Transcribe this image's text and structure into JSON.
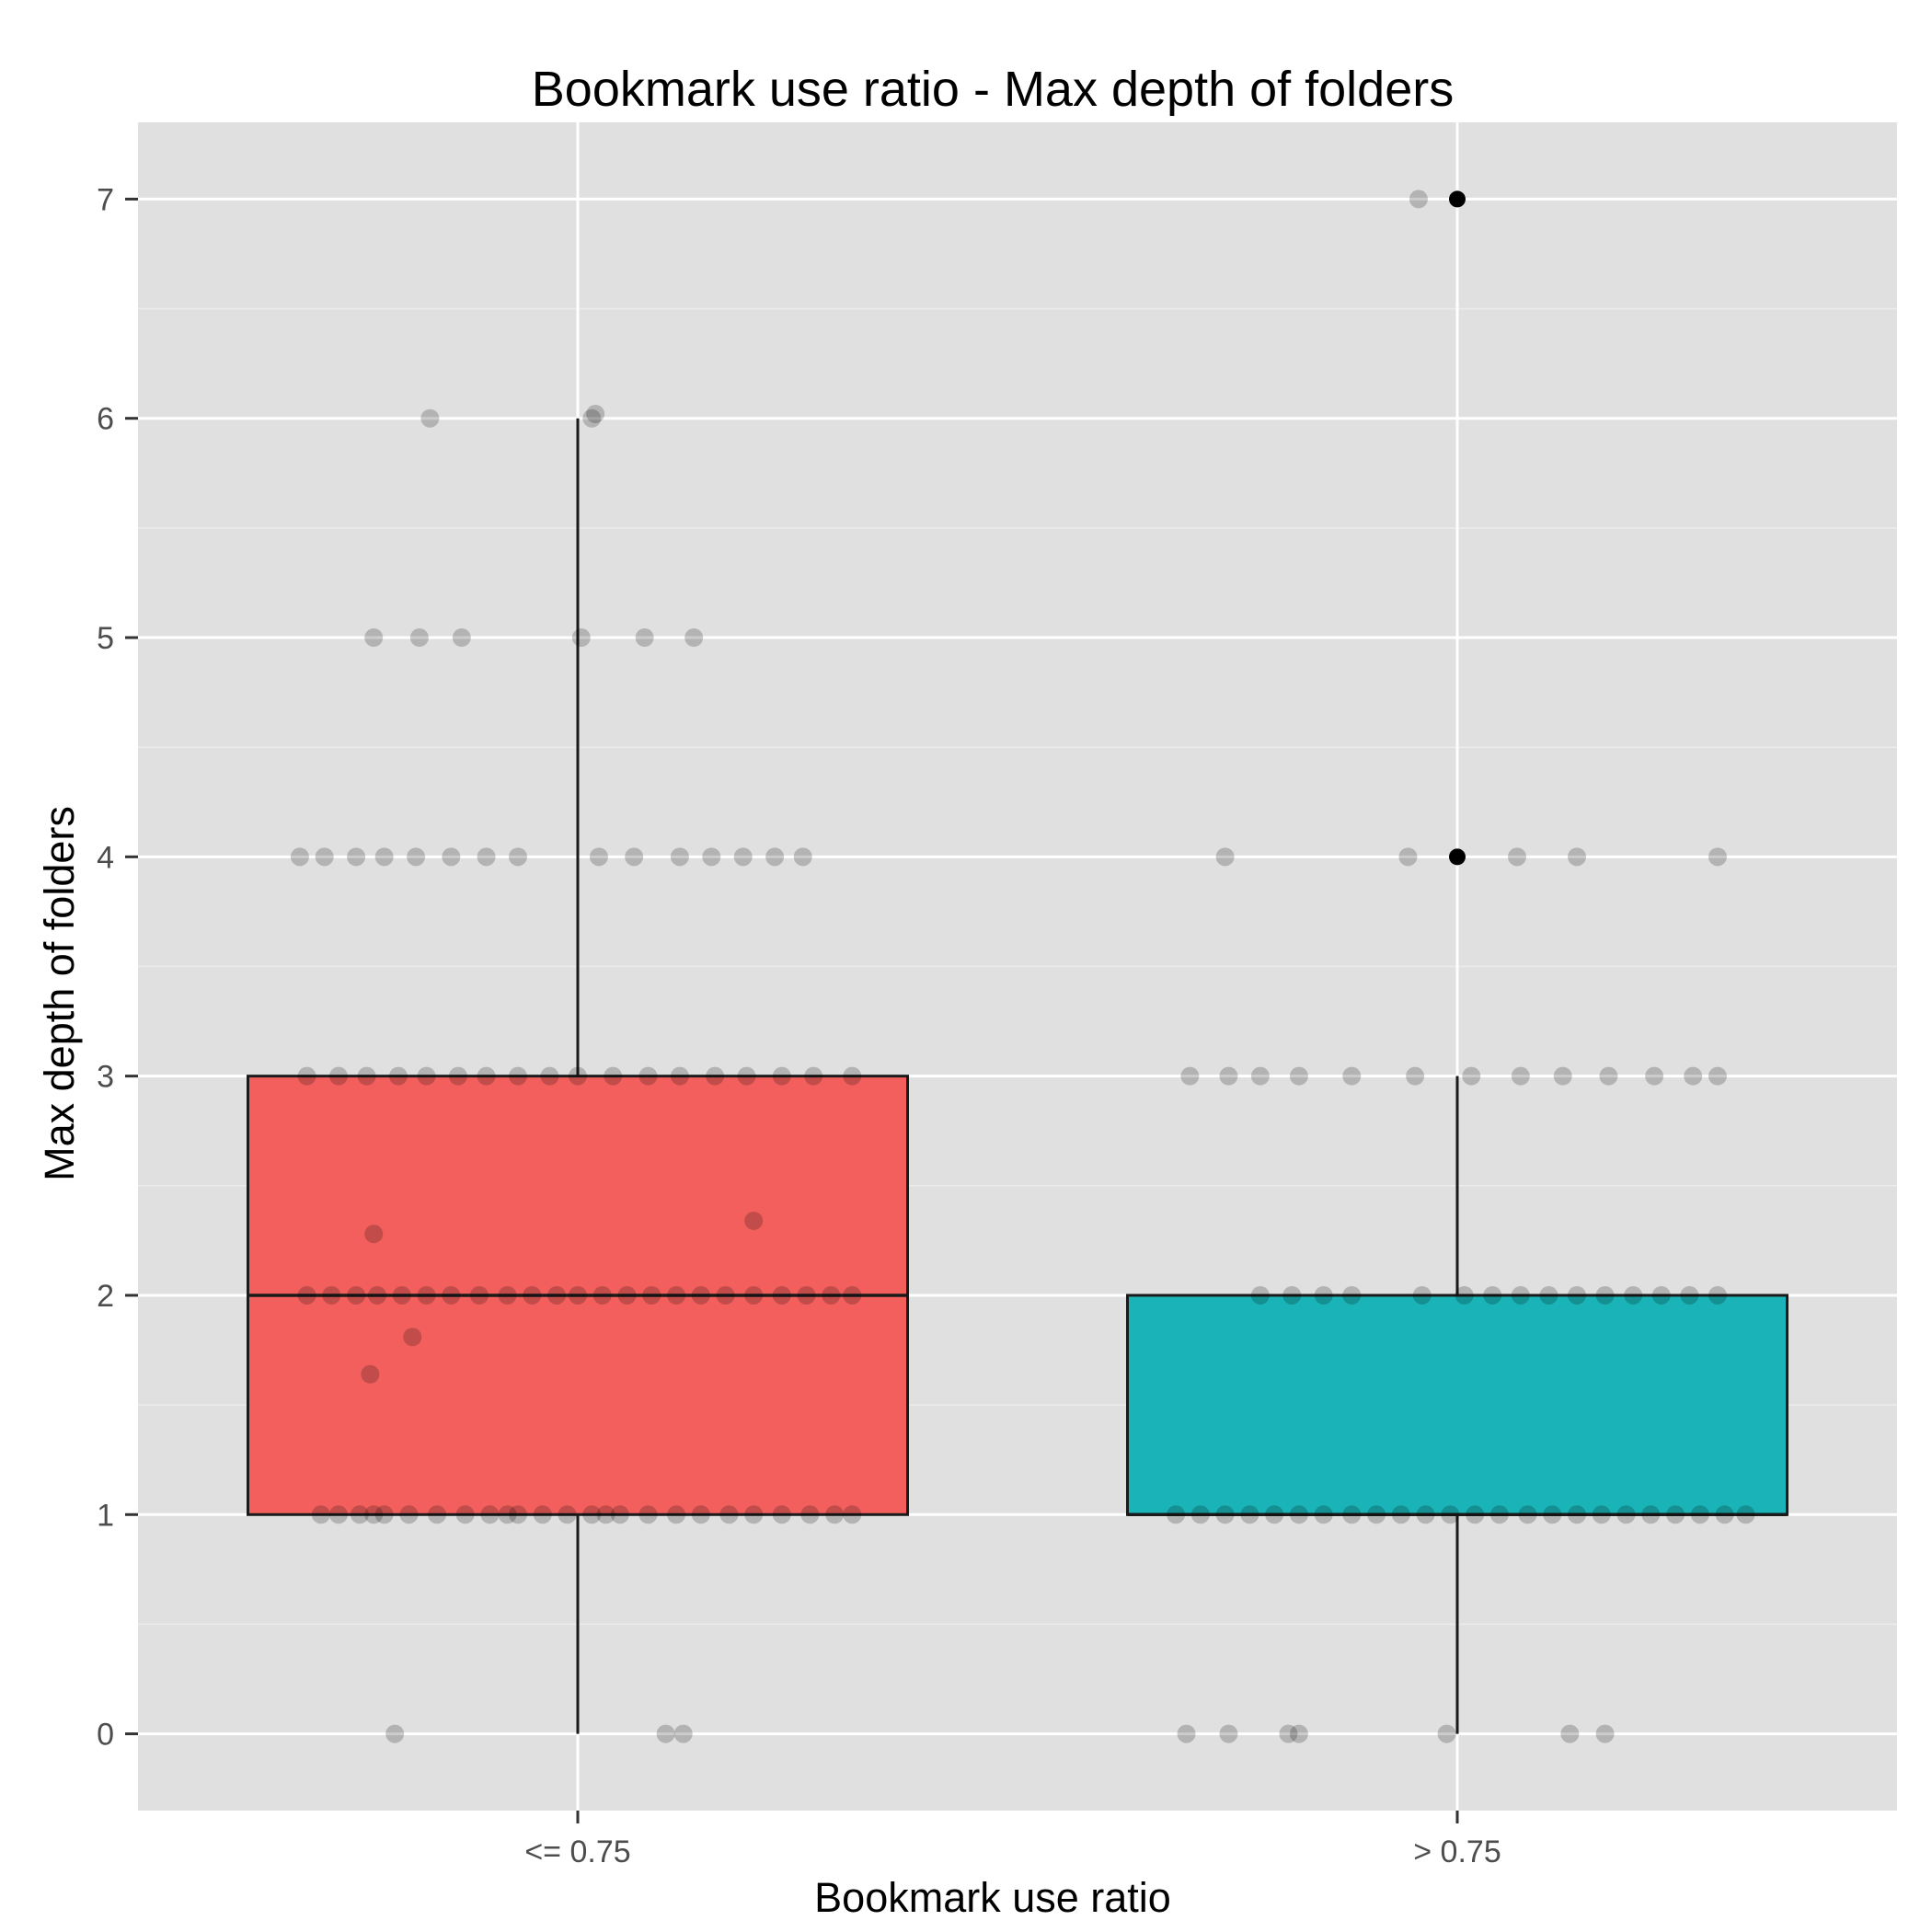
{
  "colors": {
    "panel": "#e0e0e0",
    "grid_major": "#ffffff",
    "grid_minor": "#ececec",
    "box_low": "#f25f5c",
    "box_high": "#1ab4b8",
    "outline": "#1a1a1a",
    "point": "#000000",
    "tick_text": "#4d4d4d"
  },
  "chart_data": {
    "type": "box",
    "title": "Bookmark use ratio - Max depth of folders",
    "xlabel": "Bookmark use ratio",
    "ylabel": "Max depth of folders",
    "categories": [
      "<= 0.75",
      "> 0.75"
    ],
    "ylim": [
      -0.35,
      7.35
    ],
    "yticks": [
      0,
      1,
      2,
      3,
      4,
      5,
      6,
      7
    ],
    "grid": true,
    "legend": "none",
    "boxes": [
      {
        "category": "<= 0.75",
        "whisker_low": 0,
        "q1": 1,
        "median": 2,
        "q3": 3,
        "whisker_high": 6,
        "outliers": [],
        "jitter_points": [
          {
            "x": -0.52,
            "y": 0
          },
          {
            "x": 0.25,
            "y": 0
          },
          {
            "x": 0.3,
            "y": 0
          },
          {
            "x": -0.73,
            "y": 1
          },
          {
            "x": -0.68,
            "y": 1
          },
          {
            "x": -0.62,
            "y": 1
          },
          {
            "x": -0.55,
            "y": 1
          },
          {
            "x": -0.48,
            "y": 1
          },
          {
            "x": -0.4,
            "y": 1
          },
          {
            "x": -0.32,
            "y": 1
          },
          {
            "x": -0.25,
            "y": 1
          },
          {
            "x": -0.17,
            "y": 1
          },
          {
            "x": -0.1,
            "y": 1
          },
          {
            "x": -0.03,
            "y": 1
          },
          {
            "x": 0.04,
            "y": 1
          },
          {
            "x": 0.12,
            "y": 1
          },
          {
            "x": 0.2,
            "y": 1
          },
          {
            "x": 0.28,
            "y": 1
          },
          {
            "x": 0.35,
            "y": 1
          },
          {
            "x": 0.43,
            "y": 1
          },
          {
            "x": 0.5,
            "y": 1
          },
          {
            "x": 0.58,
            "y": 1
          },
          {
            "x": 0.66,
            "y": 1
          },
          {
            "x": 0.73,
            "y": 1
          },
          {
            "x": 0.78,
            "y": 1
          },
          {
            "x": -0.58,
            "y": 1
          },
          {
            "x": -0.2,
            "y": 1
          },
          {
            "x": 0.08,
            "y": 1
          },
          {
            "x": -0.77,
            "y": 2
          },
          {
            "x": -0.7,
            "y": 2
          },
          {
            "x": -0.63,
            "y": 2
          },
          {
            "x": -0.57,
            "y": 2
          },
          {
            "x": -0.5,
            "y": 2
          },
          {
            "x": -0.43,
            "y": 2
          },
          {
            "x": -0.36,
            "y": 2
          },
          {
            "x": -0.28,
            "y": 2
          },
          {
            "x": -0.2,
            "y": 2
          },
          {
            "x": -0.13,
            "y": 2
          },
          {
            "x": -0.06,
            "y": 2
          },
          {
            "x": 0.0,
            "y": 2
          },
          {
            "x": 0.07,
            "y": 2
          },
          {
            "x": 0.14,
            "y": 2
          },
          {
            "x": 0.21,
            "y": 2
          },
          {
            "x": 0.28,
            "y": 2
          },
          {
            "x": 0.35,
            "y": 2
          },
          {
            "x": 0.42,
            "y": 2
          },
          {
            "x": 0.5,
            "y": 2
          },
          {
            "x": 0.58,
            "y": 2
          },
          {
            "x": 0.65,
            "y": 2
          },
          {
            "x": 0.72,
            "y": 2
          },
          {
            "x": 0.78,
            "y": 2
          },
          {
            "x": -0.58,
            "y": 2.28
          },
          {
            "x": 0.5,
            "y": 2.34
          },
          {
            "x": -0.47,
            "y": 1.81
          },
          {
            "x": -0.59,
            "y": 1.64
          },
          {
            "x": -0.77,
            "y": 3
          },
          {
            "x": -0.68,
            "y": 3
          },
          {
            "x": -0.6,
            "y": 3
          },
          {
            "x": -0.51,
            "y": 3
          },
          {
            "x": -0.43,
            "y": 3
          },
          {
            "x": -0.34,
            "y": 3
          },
          {
            "x": -0.26,
            "y": 3
          },
          {
            "x": -0.17,
            "y": 3
          },
          {
            "x": -0.08,
            "y": 3
          },
          {
            "x": 0.0,
            "y": 3
          },
          {
            "x": 0.1,
            "y": 3
          },
          {
            "x": 0.2,
            "y": 3
          },
          {
            "x": 0.29,
            "y": 3
          },
          {
            "x": 0.39,
            "y": 3
          },
          {
            "x": 0.48,
            "y": 3
          },
          {
            "x": 0.58,
            "y": 3
          },
          {
            "x": 0.67,
            "y": 3
          },
          {
            "x": 0.78,
            "y": 3
          },
          {
            "x": -0.79,
            "y": 4
          },
          {
            "x": -0.72,
            "y": 4
          },
          {
            "x": -0.63,
            "y": 4
          },
          {
            "x": -0.55,
            "y": 4
          },
          {
            "x": -0.46,
            "y": 4
          },
          {
            "x": -0.36,
            "y": 4
          },
          {
            "x": -0.26,
            "y": 4
          },
          {
            "x": -0.17,
            "y": 4
          },
          {
            "x": 0.06,
            "y": 4
          },
          {
            "x": 0.16,
            "y": 4
          },
          {
            "x": 0.29,
            "y": 4
          },
          {
            "x": 0.38,
            "y": 4
          },
          {
            "x": 0.47,
            "y": 4
          },
          {
            "x": 0.56,
            "y": 4
          },
          {
            "x": 0.64,
            "y": 4
          },
          {
            "x": -0.58,
            "y": 5
          },
          {
            "x": -0.45,
            "y": 5
          },
          {
            "x": -0.33,
            "y": 5
          },
          {
            "x": 0.01,
            "y": 5
          },
          {
            "x": 0.19,
            "y": 5
          },
          {
            "x": 0.33,
            "y": 5
          },
          {
            "x": -0.42,
            "y": 6
          },
          {
            "x": 0.04,
            "y": 6
          },
          {
            "x": 0.05,
            "y": 6.02
          }
        ]
      },
      {
        "category": "> 0.75",
        "whisker_low": 0,
        "q1": 1,
        "median": 1,
        "q3": 2,
        "whisker_high": 3,
        "outliers": [
          4,
          7
        ],
        "jitter_points": [
          {
            "x": -0.77,
            "y": 0
          },
          {
            "x": -0.65,
            "y": 0
          },
          {
            "x": -0.48,
            "y": 0
          },
          {
            "x": -0.45,
            "y": 0
          },
          {
            "x": -0.03,
            "y": 0
          },
          {
            "x": 0.32,
            "y": 0
          },
          {
            "x": 0.42,
            "y": 0
          },
          {
            "x": -0.8,
            "y": 1
          },
          {
            "x": -0.73,
            "y": 1
          },
          {
            "x": -0.66,
            "y": 1
          },
          {
            "x": -0.59,
            "y": 1
          },
          {
            "x": -0.52,
            "y": 1
          },
          {
            "x": -0.45,
            "y": 1
          },
          {
            "x": -0.38,
            "y": 1
          },
          {
            "x": -0.3,
            "y": 1
          },
          {
            "x": -0.23,
            "y": 1
          },
          {
            "x": -0.16,
            "y": 1
          },
          {
            "x": -0.09,
            "y": 1
          },
          {
            "x": -0.02,
            "y": 1
          },
          {
            "x": 0.05,
            "y": 1
          },
          {
            "x": 0.12,
            "y": 1
          },
          {
            "x": 0.2,
            "y": 1
          },
          {
            "x": 0.27,
            "y": 1
          },
          {
            "x": 0.34,
            "y": 1
          },
          {
            "x": 0.41,
            "y": 1
          },
          {
            "x": 0.48,
            "y": 1
          },
          {
            "x": 0.55,
            "y": 1
          },
          {
            "x": 0.62,
            "y": 1
          },
          {
            "x": 0.69,
            "y": 1
          },
          {
            "x": 0.76,
            "y": 1
          },
          {
            "x": 0.82,
            "y": 1
          },
          {
            "x": -0.56,
            "y": 2
          },
          {
            "x": -0.47,
            "y": 2
          },
          {
            "x": -0.38,
            "y": 2
          },
          {
            "x": -0.3,
            "y": 2
          },
          {
            "x": -0.1,
            "y": 2
          },
          {
            "x": 0.02,
            "y": 2
          },
          {
            "x": 0.1,
            "y": 2
          },
          {
            "x": 0.18,
            "y": 2
          },
          {
            "x": 0.26,
            "y": 2
          },
          {
            "x": 0.34,
            "y": 2
          },
          {
            "x": 0.42,
            "y": 2
          },
          {
            "x": 0.5,
            "y": 2
          },
          {
            "x": 0.58,
            "y": 2
          },
          {
            "x": 0.66,
            "y": 2
          },
          {
            "x": 0.74,
            "y": 2
          },
          {
            "x": -0.76,
            "y": 3
          },
          {
            "x": -0.65,
            "y": 3
          },
          {
            "x": -0.56,
            "y": 3
          },
          {
            "x": -0.45,
            "y": 3
          },
          {
            "x": -0.3,
            "y": 3
          },
          {
            "x": -0.12,
            "y": 3
          },
          {
            "x": 0.04,
            "y": 3
          },
          {
            "x": 0.18,
            "y": 3
          },
          {
            "x": 0.3,
            "y": 3
          },
          {
            "x": 0.43,
            "y": 3
          },
          {
            "x": 0.56,
            "y": 3
          },
          {
            "x": 0.67,
            "y": 3
          },
          {
            "x": 0.74,
            "y": 3
          },
          {
            "x": -0.66,
            "y": 4
          },
          {
            "x": -0.14,
            "y": 4
          },
          {
            "x": 0.17,
            "y": 4
          },
          {
            "x": 0.34,
            "y": 4
          },
          {
            "x": 0.74,
            "y": 4
          },
          {
            "x": -0.11,
            "y": 7
          }
        ]
      }
    ]
  }
}
